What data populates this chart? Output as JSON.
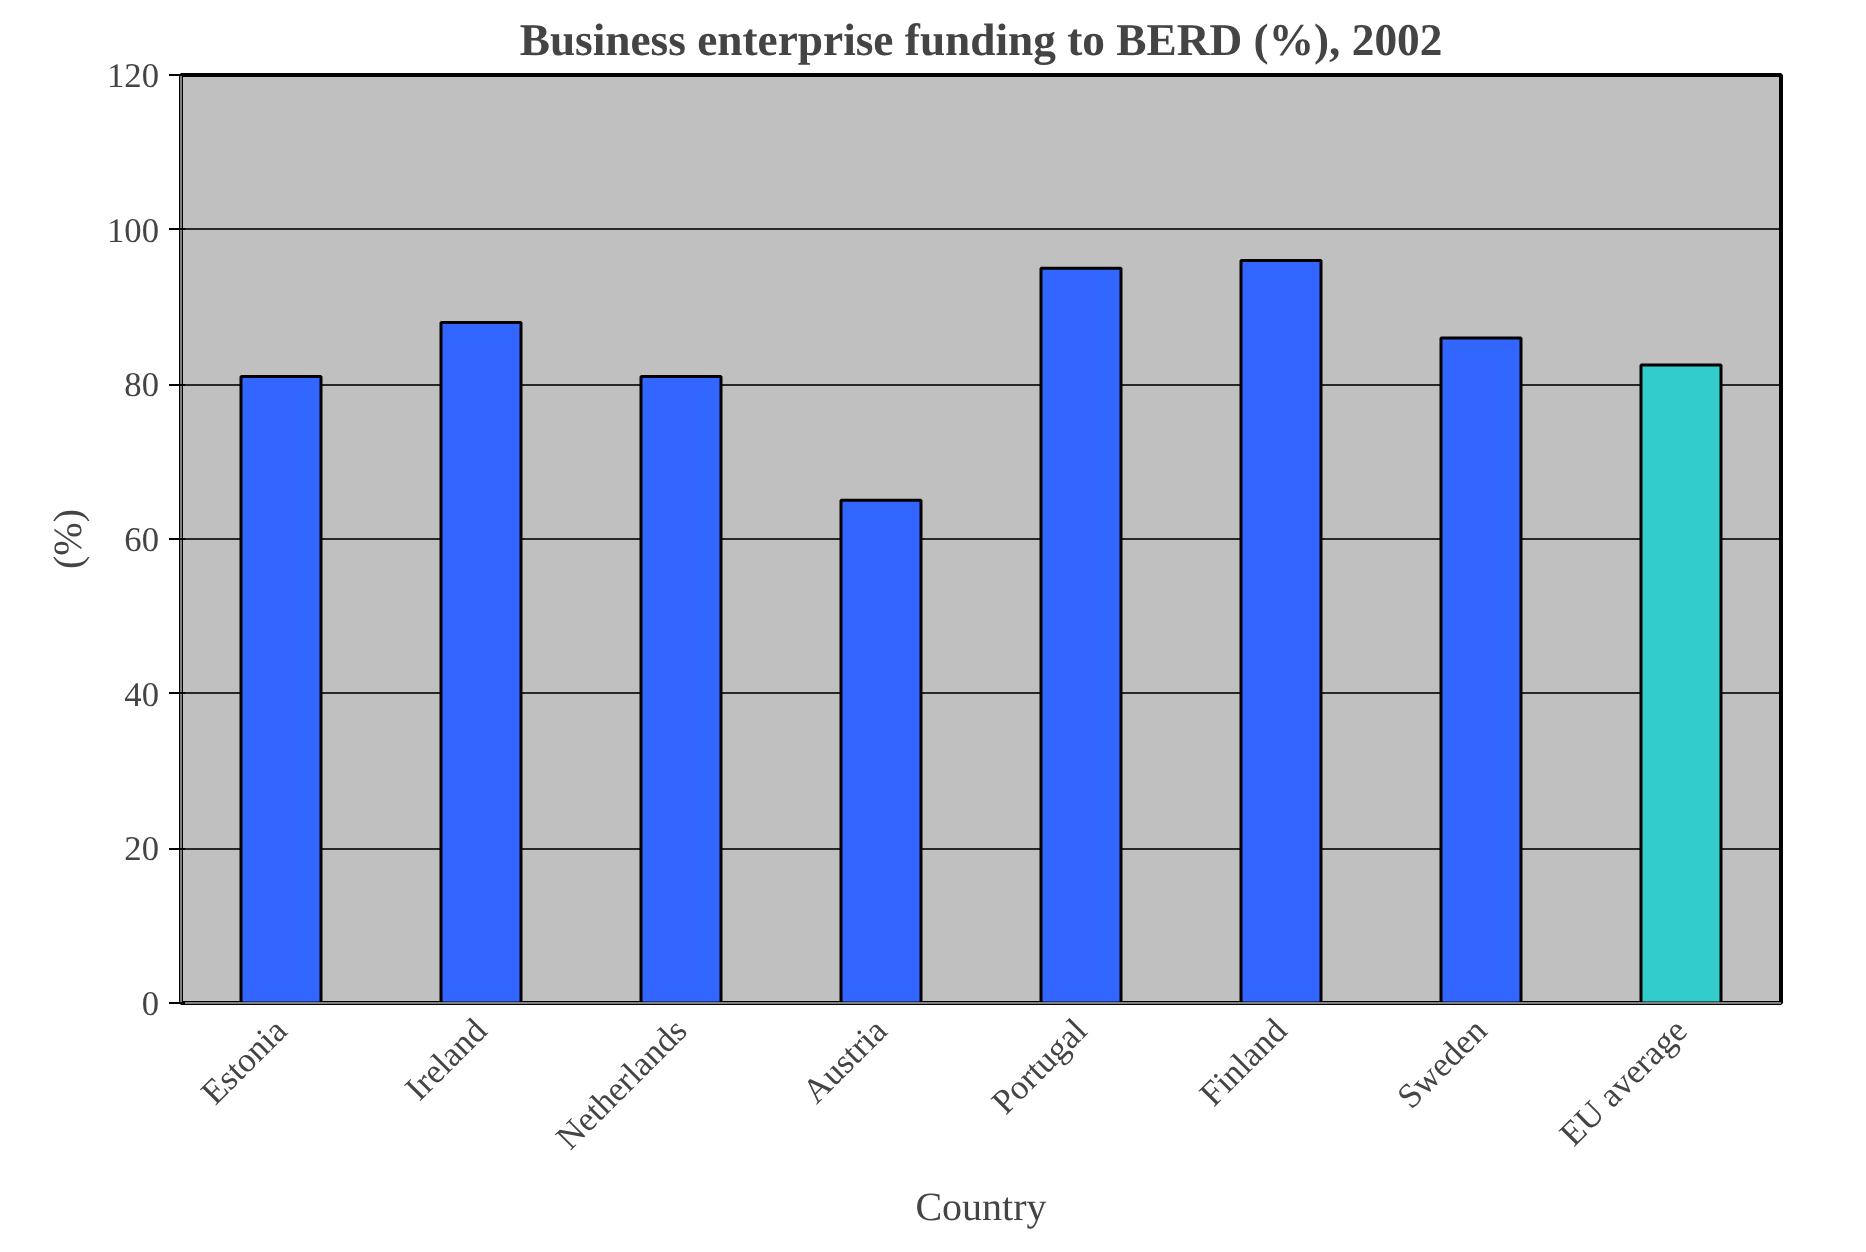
{
  "chart_data": {
    "type": "bar",
    "title": "Business enterprise funding to BERD (%), 2002",
    "xlabel": "Country",
    "ylabel": "(%)",
    "categories": [
      "Estonia",
      "Ireland",
      "Netherlands",
      "Austria",
      "Portugal",
      "Finland",
      "Sweden",
      "EU average"
    ],
    "values": [
      81,
      88,
      81,
      65,
      95,
      96,
      86,
      82.5
    ],
    "colors": [
      "#3366ff",
      "#3366ff",
      "#3366ff",
      "#3366ff",
      "#3366ff",
      "#3366ff",
      "#3366ff",
      "#33cccc"
    ],
    "ylim": [
      0,
      120
    ],
    "yticks": [
      0,
      20,
      40,
      60,
      80,
      100,
      120
    ],
    "grid": "y"
  }
}
